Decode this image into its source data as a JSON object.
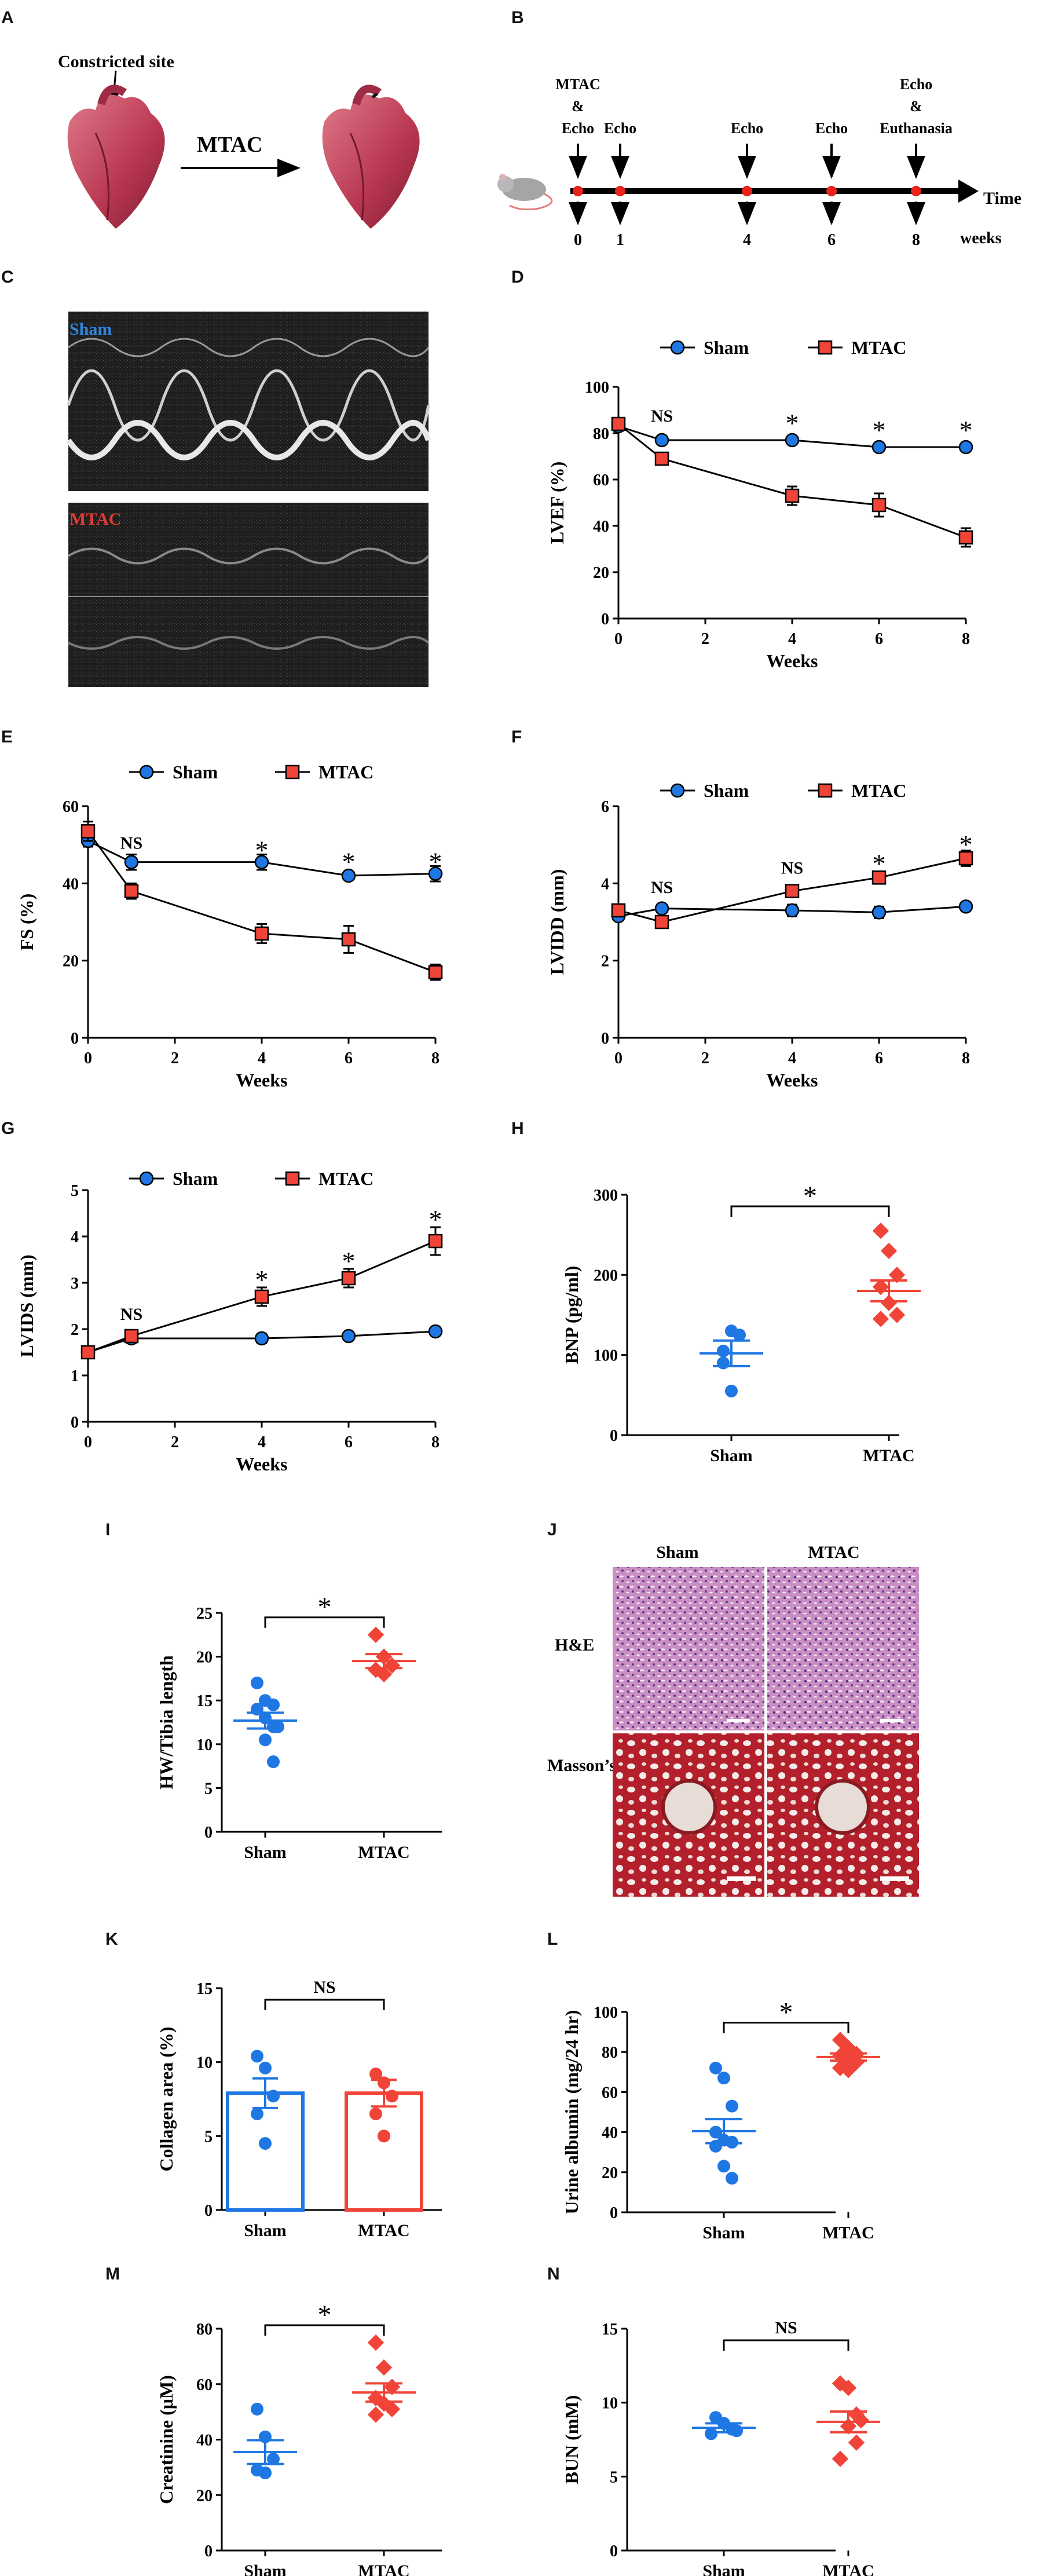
{
  "panel_labels": {
    "A": "A",
    "B": "B",
    "C": "C",
    "D": "D",
    "E": "E",
    "F": "F",
    "G": "G",
    "H": "H",
    "I": "I",
    "J": "J",
    "K": "K",
    "L": "L",
    "M": "M",
    "N": "N"
  },
  "colors": {
    "sham": "#1f77e4",
    "mtac": "#f04438",
    "axis": "#000000"
  },
  "panel_a": {
    "constricted_site": "Constricted site",
    "arrow_label": "MTAC"
  },
  "panel_b": {
    "events": [
      {
        "week": 0,
        "lines": [
          "MTAC",
          "&",
          "Echo"
        ]
      },
      {
        "week": 1,
        "lines": [
          "Echo"
        ]
      },
      {
        "week": 4,
        "lines": [
          "Echo"
        ]
      },
      {
        "week": 6,
        "lines": [
          "Echo"
        ]
      },
      {
        "week": 8,
        "lines": [
          "Echo",
          "&",
          "Euthanasia"
        ]
      }
    ],
    "axis_label": "Time",
    "unit_label": "weeks"
  },
  "panel_c": {
    "sham_tag": "Sham",
    "mtac_tag": "MTAC"
  },
  "panel_j": {
    "col_sham": "Sham",
    "col_mtac": "MTAC",
    "row_he": "H&E",
    "row_masson": "Masson’s"
  },
  "chart_data": [
    {
      "panel": "D",
      "type": "line",
      "ylabel": "LVEF (%)",
      "xlabel": "Weeks",
      "ylim": [
        0,
        100
      ],
      "yticks": [
        0,
        20,
        40,
        60,
        80,
        100
      ],
      "xlim": [
        0,
        8
      ],
      "xticks": [
        0,
        2,
        4,
        6,
        8
      ],
      "legend": [
        "Sham",
        "MTAC"
      ],
      "x": [
        0,
        1,
        4,
        6,
        8
      ],
      "series": [
        {
          "name": "Sham",
          "values": [
            83,
            77,
            77,
            74,
            74
          ],
          "err": [
            2,
            1,
            1,
            1,
            1
          ]
        },
        {
          "name": "MTAC",
          "values": [
            84,
            69,
            53,
            49,
            35
          ],
          "err": [
            2,
            2,
            4,
            5,
            4
          ]
        }
      ],
      "annotations": [
        {
          "x": 1,
          "text": "NS",
          "y": 85
        },
        {
          "x": 4,
          "text": "*",
          "y": 85
        },
        {
          "x": 6,
          "text": "*",
          "y": 82
        },
        {
          "x": 8,
          "text": "*",
          "y": 82
        }
      ]
    },
    {
      "panel": "E",
      "type": "line",
      "ylabel": "FS (%)",
      "xlabel": "Weeks",
      "ylim": [
        0,
        60
      ],
      "yticks": [
        0,
        20,
        40,
        60
      ],
      "xlim": [
        0,
        8
      ],
      "xticks": [
        0,
        2,
        4,
        6,
        8
      ],
      "legend": [
        "Sham",
        "MTAC"
      ],
      "x": [
        0,
        1,
        4,
        6,
        8
      ],
      "series": [
        {
          "name": "Sham",
          "values": [
            51,
            45.5,
            45.5,
            42,
            42.5
          ],
          "err": [
            1.5,
            2,
            2,
            1,
            2
          ]
        },
        {
          "name": "MTAC",
          "values": [
            53.5,
            38,
            27,
            25.5,
            17
          ],
          "err": [
            2.5,
            2,
            2.5,
            3.5,
            2
          ]
        }
      ],
      "annotations": [
        {
          "x": 1,
          "text": "NS",
          "y": 49
        },
        {
          "x": 4,
          "text": "*",
          "y": 49
        },
        {
          "x": 6,
          "text": "*",
          "y": 46
        },
        {
          "x": 8,
          "text": "*",
          "y": 46
        }
      ]
    },
    {
      "panel": "F",
      "type": "line",
      "ylabel": "LVIDD (mm)",
      "xlabel": "Weeks",
      "ylim": [
        0,
        6
      ],
      "yticks": [
        0,
        2,
        4,
        6
      ],
      "xlim": [
        0,
        8
      ],
      "xticks": [
        0,
        2,
        4,
        6,
        8
      ],
      "legend": [
        "Sham",
        "MTAC"
      ],
      "x": [
        0,
        1,
        4,
        6,
        8
      ],
      "series": [
        {
          "name": "Sham",
          "values": [
            3.15,
            3.35,
            3.3,
            3.25,
            3.4
          ],
          "err": [
            0.1,
            0.1,
            0.15,
            0.15,
            0.05
          ]
        },
        {
          "name": "MTAC",
          "values": [
            3.3,
            3.0,
            3.8,
            4.15,
            4.65
          ],
          "err": [
            0.15,
            0.1,
            0.1,
            0.1,
            0.2
          ]
        }
      ],
      "annotations": [
        {
          "x": 1,
          "text": "NS",
          "y": 3.75
        },
        {
          "x": 4,
          "text": "NS",
          "y": 4.25
        },
        {
          "x": 6,
          "text": "*",
          "y": 4.55
        },
        {
          "x": 8,
          "text": "*",
          "y": 5.05
        }
      ]
    },
    {
      "panel": "G",
      "type": "line",
      "ylabel": "LVIDS (mm)",
      "xlabel": "Weeks",
      "ylim": [
        0,
        5
      ],
      "yticks": [
        0,
        1,
        2,
        3,
        4,
        5
      ],
      "xlim": [
        0,
        8
      ],
      "xticks": [
        0,
        2,
        4,
        6,
        8
      ],
      "legend": [
        "Sham",
        "MTAC"
      ],
      "x": [
        0,
        1,
        4,
        6,
        8
      ],
      "series": [
        {
          "name": "Sham",
          "values": [
            1.5,
            1.8,
            1.8,
            1.85,
            1.95
          ],
          "err": [
            0.05,
            0.1,
            0.1,
            0.05,
            0.05
          ]
        },
        {
          "name": "MTAC",
          "values": [
            1.5,
            1.85,
            2.7,
            3.1,
            3.9
          ],
          "err": [
            0.05,
            0.1,
            0.2,
            0.2,
            0.3
          ]
        }
      ],
      "annotations": [
        {
          "x": 1,
          "text": "NS",
          "y": 2.2
        },
        {
          "x": 4,
          "text": "*",
          "y": 3.1
        },
        {
          "x": 6,
          "text": "*",
          "y": 3.5
        },
        {
          "x": 8,
          "text": "*",
          "y": 4.4
        }
      ]
    },
    {
      "panel": "H",
      "type": "scatter",
      "ylabel": "BNP (pg/ml)",
      "categories": [
        "Sham",
        "MTAC"
      ],
      "ylim": [
        0,
        300
      ],
      "yticks": [
        0,
        100,
        200,
        300
      ],
      "points": [
        [
          105,
          130,
          125,
          90,
          55
        ],
        [
          255,
          230,
          200,
          185,
          165,
          150,
          145
        ]
      ],
      "means": [
        102,
        180
      ],
      "sem": [
        16,
        13
      ],
      "sig": "*"
    },
    {
      "panel": "I",
      "type": "scatter",
      "ylabel": "HW/Tibia length",
      "categories": [
        "Sham",
        "MTAC"
      ],
      "ylim": [
        0,
        25
      ],
      "yticks": [
        0,
        5,
        10,
        15,
        20,
        25
      ],
      "points": [
        [
          17,
          15,
          14.5,
          14,
          13,
          12,
          12,
          10.5,
          8
        ],
        [
          22.5,
          20,
          19,
          18.5,
          18
        ]
      ],
      "means": [
        12.7,
        19.5
      ],
      "sem": [
        0.9,
        0.8
      ],
      "sig": "*"
    },
    {
      "panel": "K",
      "type": "bar",
      "ylabel": "Collagen area (%)",
      "categories": [
        "Sham",
        "MTAC"
      ],
      "ylim": [
        0,
        15
      ],
      "yticks": [
        0,
        5,
        10,
        15
      ],
      "values": [
        7.9,
        7.9
      ],
      "sem": [
        1.0,
        0.9
      ],
      "points": [
        [
          10.4,
          9.6,
          7.7,
          6.5,
          4.5
        ],
        [
          9.2,
          8.6,
          7.7,
          6.5,
          5
        ]
      ],
      "sig": "NS"
    },
    {
      "panel": "L",
      "type": "scatter",
      "ylabel": "Urine albumin (mg/24 hr)",
      "categories": [
        "Sham",
        "MTAC"
      ],
      "ylim": [
        0,
        100
      ],
      "yticks": [
        0,
        20,
        40,
        60,
        80,
        100
      ],
      "points": [
        [
          72,
          67,
          53,
          40,
          36,
          35,
          33,
          23,
          17
        ],
        [
          86,
          82,
          79,
          78,
          76,
          75,
          72,
          71
        ]
      ],
      "means": [
        40.5,
        77.5
      ],
      "sem": [
        6,
        1.8
      ],
      "sig": "*"
    },
    {
      "panel": "M",
      "type": "scatter",
      "ylabel": "Creatinine (μM)",
      "categories": [
        "Sham",
        "MTAC"
      ],
      "ylim": [
        0,
        80
      ],
      "yticks": [
        0,
        20,
        40,
        60,
        80
      ],
      "points": [
        [
          51,
          41,
          33,
          29,
          28
        ],
        [
          75,
          66,
          59,
          55,
          53,
          51,
          49
        ]
      ],
      "means": [
        35.5,
        57
      ],
      "sem": [
        4.3,
        3.3
      ],
      "sig": "*"
    },
    {
      "panel": "N",
      "type": "scatter",
      "ylabel": "BUN (mM)",
      "categories": [
        "Sham",
        "MTAC"
      ],
      "ylim": [
        0,
        15
      ],
      "yticks": [
        0,
        5,
        10,
        15
      ],
      "points": [
        [
          9,
          8.6,
          8.2,
          8.1,
          7.9
        ],
        [
          11.3,
          11,
          9.2,
          8.8,
          8.4,
          7.3,
          6.2
        ]
      ],
      "means": [
        8.3,
        8.7
      ],
      "sem": [
        0.3,
        0.7
      ],
      "sig": "NS"
    }
  ]
}
